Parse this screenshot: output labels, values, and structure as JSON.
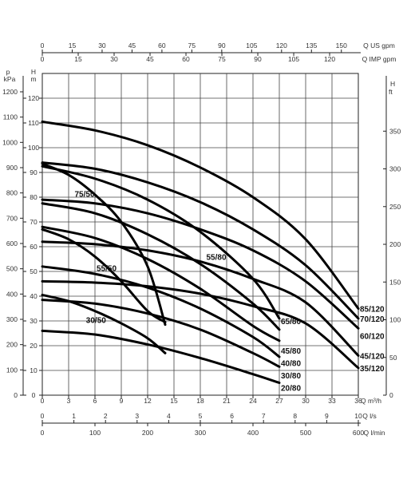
{
  "chart_data": {
    "type": "line",
    "x": {
      "label_q": "Q",
      "unit": "m³/h",
      "min": 0,
      "max": 36,
      "ticks": [
        0,
        3,
        6,
        9,
        12,
        15,
        18,
        21,
        24,
        27,
        30,
        33,
        36
      ]
    },
    "y_head": {
      "label": "H",
      "unit": "m",
      "min": 0,
      "max": 120,
      "ticks": [
        0,
        10,
        20,
        30,
        40,
        50,
        60,
        70,
        80,
        90,
        100,
        110,
        120
      ]
    },
    "y_pressure": {
      "label": "p",
      "unit": "kPa",
      "ticks": [
        0,
        100,
        200,
        300,
        400,
        500,
        600,
        700,
        800,
        900,
        1000,
        1100,
        1200
      ]
    },
    "y_head_ft": {
      "label": "H",
      "unit": "ft",
      "ticks": [
        0,
        50,
        100,
        150,
        200,
        250,
        300,
        350
      ]
    },
    "top_axis_us": {
      "label": "Q US gpm",
      "ticks": [
        "0",
        "15",
        "30",
        "45",
        "60",
        "75",
        "90",
        "105",
        "120",
        "135",
        "150"
      ]
    },
    "top_axis_imp": {
      "label": "Q IMP gpm",
      "ticks": [
        "0",
        "15",
        "30",
        "45",
        "60",
        "75",
        "90",
        "105",
        "120"
      ]
    },
    "bottom_axis_ls": {
      "label": "Q l/s",
      "ticks": [
        "0",
        "1",
        "2",
        "3",
        "4",
        "5",
        "6",
        "7",
        "8",
        "9",
        "10"
      ]
    },
    "bottom_axis_lmin": {
      "label": "Q l/min",
      "ticks": [
        "0",
        "100",
        "200",
        "300",
        "400",
        "500",
        "600"
      ]
    },
    "series": [
      {
        "name": "85/120",
        "points": [
          [
            0,
            110.5
          ],
          [
            6,
            107
          ],
          [
            12,
            101
          ],
          [
            18,
            92
          ],
          [
            24,
            80
          ],
          [
            30,
            63
          ],
          [
            36,
            35
          ]
        ]
      },
      {
        "name": "70/120",
        "points": [
          [
            0,
            94
          ],
          [
            6,
            91.5
          ],
          [
            12,
            86
          ],
          [
            18,
            78
          ],
          [
            24,
            67
          ],
          [
            30,
            52.5
          ],
          [
            36,
            31
          ]
        ]
      },
      {
        "name": "60/120",
        "points": [
          [
            0,
            79
          ],
          [
            6,
            77.5
          ],
          [
            12,
            73.5
          ],
          [
            18,
            67
          ],
          [
            24,
            58.5
          ],
          [
            30,
            46
          ],
          [
            36,
            27
          ]
        ]
      },
      {
        "name": "45/120",
        "points": [
          [
            0,
            62
          ],
          [
            6,
            61
          ],
          [
            12,
            58.5
          ],
          [
            18,
            54
          ],
          [
            24,
            47
          ],
          [
            30,
            37.5
          ],
          [
            36,
            16
          ]
        ]
      },
      {
        "name": "35/120",
        "points": [
          [
            0,
            46
          ],
          [
            6,
            45.5
          ],
          [
            12,
            44
          ],
          [
            18,
            41
          ],
          [
            24,
            36
          ],
          [
            30,
            29
          ],
          [
            36,
            11
          ]
        ]
      },
      {
        "name": "65/80",
        "points": [
          [
            0,
            92.5
          ],
          [
            6,
            87.5
          ],
          [
            12,
            79
          ],
          [
            18,
            66
          ],
          [
            24,
            47
          ],
          [
            27,
            31
          ]
        ]
      },
      {
        "name": "55/80",
        "points": [
          [
            0,
            77.5
          ],
          [
            6,
            73.5
          ],
          [
            12,
            65
          ],
          [
            18,
            53
          ],
          [
            24,
            37
          ],
          [
            27,
            26.5
          ]
        ]
      },
      {
        "name": "45/80",
        "points": [
          [
            0,
            68
          ],
          [
            6,
            63.5
          ],
          [
            12,
            55
          ],
          [
            18,
            43
          ],
          [
            24,
            28
          ],
          [
            27,
            22
          ]
        ]
      },
      {
        "name": "40/80",
        "points": [
          [
            0,
            52
          ],
          [
            6,
            49
          ],
          [
            12,
            43.5
          ],
          [
            18,
            35
          ],
          [
            24,
            23.5
          ],
          [
            27,
            15.5
          ]
        ]
      },
      {
        "name": "30/80",
        "points": [
          [
            0,
            38.5
          ],
          [
            6,
            37
          ],
          [
            12,
            33
          ],
          [
            18,
            26.5
          ],
          [
            24,
            17
          ],
          [
            27,
            11.5
          ]
        ]
      },
      {
        "name": "20/80",
        "points": [
          [
            0,
            26
          ],
          [
            6,
            24.5
          ],
          [
            12,
            20.5
          ],
          [
            18,
            15
          ],
          [
            24,
            8.5
          ],
          [
            27,
            5
          ]
        ]
      },
      {
        "name": "75/50",
        "points": [
          [
            0,
            93.5
          ],
          [
            3,
            89
          ],
          [
            6,
            81
          ],
          [
            9,
            70
          ],
          [
            12,
            52
          ],
          [
            14,
            28.5
          ]
        ]
      },
      {
        "name": "55/50",
        "points": [
          [
            0,
            67
          ],
          [
            3,
            63
          ],
          [
            6,
            56
          ],
          [
            9,
            46
          ],
          [
            12,
            34
          ],
          [
            14,
            29.5
          ]
        ]
      },
      {
        "name": "30/50",
        "points": [
          [
            0,
            40.5
          ],
          [
            3,
            38
          ],
          [
            6,
            34
          ],
          [
            9,
            29
          ],
          [
            12,
            23
          ],
          [
            14,
            17
          ]
        ]
      }
    ],
    "labels": [
      {
        "text": "85/120",
        "x": 36,
        "y": 35
      },
      {
        "text": "70/120",
        "x": 36,
        "y": 31
      },
      {
        "text": "60/120",
        "x": 36,
        "y": 24
      },
      {
        "text": "45/120",
        "x": 36,
        "y": 16
      },
      {
        "text": "35/120",
        "x": 36,
        "y": 11
      },
      {
        "text": "65/80",
        "x": 27,
        "y": 30
      },
      {
        "text": "55/80",
        "x": 18.5,
        "y": 56
      },
      {
        "text": "45/80",
        "x": 27,
        "y": 18
      },
      {
        "text": "40/80",
        "x": 27,
        "y": 13
      },
      {
        "text": "30/80",
        "x": 27,
        "y": 8
      },
      {
        "text": "20/80",
        "x": 27,
        "y": 3
      },
      {
        "text": "75/50",
        "x": 3.5,
        "y": 81.5
      },
      {
        "text": "55/50",
        "x": 6,
        "y": 51.5
      },
      {
        "text": "30/50",
        "x": 4.8,
        "y": 30.5
      }
    ]
  }
}
